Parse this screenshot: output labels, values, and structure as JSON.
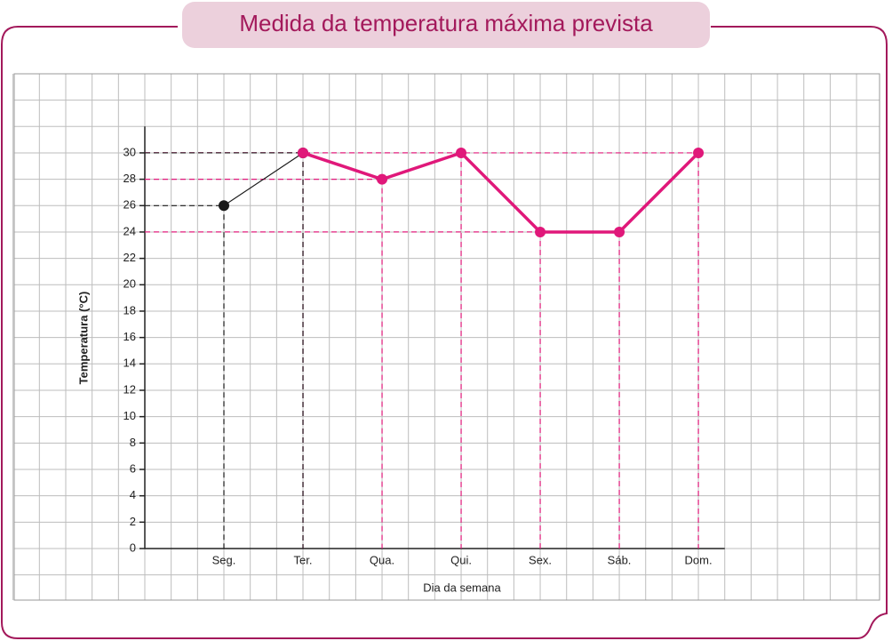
{
  "chart_data": {
    "type": "line",
    "title": "Medida da temperatura máxima prevista",
    "x_label": "Dia da semana",
    "y_label": "Temperatura (°C)",
    "categories": [
      "Seg.",
      "Ter.",
      "Qua.",
      "Qui.",
      "Sex.",
      "Sáb.",
      "Dom."
    ],
    "series": [
      {
        "color": "#1a1a1a",
        "values": [
          26,
          30,
          null,
          null,
          null,
          null,
          null
        ]
      },
      {
        "color": "#e0187a",
        "values": [
          null,
          30,
          28,
          30,
          24,
          24,
          30
        ]
      }
    ],
    "ylim": [
      0,
      32
    ],
    "yticks": [
      0,
      2,
      4,
      6,
      8,
      10,
      12,
      14,
      16,
      18,
      20,
      22,
      24,
      26,
      28,
      30
    ],
    "grid": true
  }
}
